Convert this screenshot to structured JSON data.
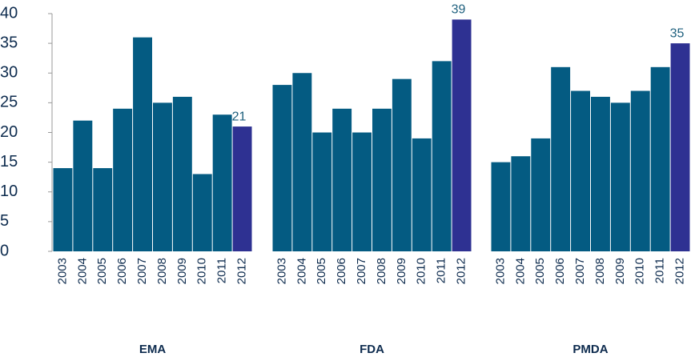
{
  "chart_data": {
    "type": "bar",
    "ylim": [
      0,
      40
    ],
    "yticks": [
      0,
      5,
      10,
      15,
      20,
      25,
      30,
      35,
      40
    ],
    "color": "#045b82",
    "highlight_color": "#2e3192",
    "groups": [
      {
        "name": "EMA",
        "categories": [
          "2003",
          "2004",
          "2005",
          "2006",
          "2007",
          "2008",
          "2009",
          "2010",
          "2011",
          "2012"
        ],
        "values": [
          14,
          22,
          14,
          24,
          36,
          25,
          26,
          13,
          23,
          21
        ]
      },
      {
        "name": "FDA",
        "categories": [
          "2003",
          "2004",
          "2005",
          "2006",
          "2007",
          "2008",
          "2009",
          "2010",
          "2011",
          "2012"
        ],
        "values": [
          28,
          30,
          20,
          24,
          20,
          24,
          29,
          19,
          32,
          39
        ]
      },
      {
        "name": "PMDA",
        "categories": [
          "2003",
          "2004",
          "2005",
          "2006",
          "2007",
          "2008",
          "2009",
          "2010",
          "2011",
          "2012"
        ],
        "values": [
          15,
          16,
          19,
          31,
          27,
          26,
          25,
          27,
          31,
          35
        ]
      }
    ]
  }
}
